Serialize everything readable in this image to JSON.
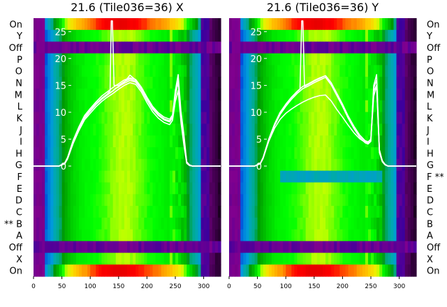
{
  "chart_data": [
    {
      "type": "heatmap",
      "title": "21.6 (Tile036=36) X",
      "xlabel": "",
      "ylabel": "",
      "xlim": [
        0,
        330
      ],
      "ylim": [
        -20.5,
        27.5
      ],
      "x_ticks": [
        0,
        50,
        100,
        150,
        200,
        250,
        300
      ],
      "y_ticks": [
        0,
        5,
        10,
        15,
        20,
        25
      ],
      "row_labels": [
        "On",
        "X",
        "Off",
        "A",
        "** B",
        "C",
        "D",
        "E",
        "F",
        "G",
        "H",
        "I",
        "J",
        "K",
        "L",
        "M",
        "N",
        "O",
        "P",
        "Off",
        "Y",
        "On"
      ],
      "colormap": "nipy_spectral",
      "line_color": "#ffffff",
      "off_rows": [
        2,
        19
      ],
      "flagged_rows": [
        4
      ],
      "series": [
        {
          "x": [
            0,
            45,
            55,
            60,
            70,
            80,
            90,
            100,
            110,
            120,
            130,
            140,
            150,
            160,
            170,
            180,
            190,
            200,
            210,
            220,
            230,
            240,
            245,
            250,
            255,
            260,
            265,
            270,
            275,
            280,
            290,
            300,
            310,
            320,
            330
          ],
          "y": [
            0,
            0,
            0.5,
            1.5,
            4.5,
            7,
            9,
            10.3,
            11.5,
            12.5,
            13.3,
            14,
            14.8,
            15.4,
            15.9,
            15.6,
            14.2,
            12.3,
            10.6,
            9.4,
            8.6,
            8.2,
            9,
            13,
            16,
            9,
            5,
            0.7,
            0.2,
            0,
            0,
            0,
            0,
            0,
            0
          ]
        },
        {
          "x": [
            0,
            45,
            55,
            60,
            70,
            80,
            90,
            100,
            110,
            120,
            130,
            140,
            150,
            160,
            170,
            180,
            190,
            200,
            210,
            220,
            230,
            240,
            245,
            250,
            255,
            260,
            265,
            270,
            275,
            280,
            290,
            300,
            310,
            320,
            330
          ],
          "y": [
            0,
            0,
            0.4,
            1.3,
            4.2,
            6.6,
            8.6,
            9.8,
            11,
            12,
            12.8,
            13.5,
            14.3,
            15,
            15.5,
            15.2,
            13.8,
            11.8,
            10.1,
            8.9,
            8.1,
            7.7,
            8.5,
            12,
            14,
            8,
            4,
            0.5,
            0.1,
            0,
            0,
            0,
            0,
            0,
            0
          ]
        },
        {
          "x": [
            0,
            45,
            55,
            60,
            70,
            80,
            90,
            100,
            110,
            120,
            130,
            140,
            150,
            160,
            170,
            180,
            190,
            200,
            210,
            220,
            230,
            240,
            245,
            250,
            255,
            260,
            265,
            270,
            275,
            280,
            290,
            300,
            310,
            320,
            330
          ],
          "y": [
            0,
            0,
            0.6,
            1.6,
            4.8,
            7.3,
            9.4,
            10.7,
            11.9,
            13,
            13.8,
            14.6,
            15.3,
            16,
            16.4,
            16.1,
            14.7,
            12.8,
            11.1,
            9.9,
            9.1,
            8.7,
            9.5,
            14,
            17,
            10,
            6,
            0.8,
            0.2,
            0,
            0,
            0,
            0,
            0,
            0
          ]
        },
        {
          "x": [
            0,
            45,
            55,
            60,
            70,
            80,
            90,
            100,
            110,
            120,
            130,
            140,
            145,
            150,
            160,
            170,
            180,
            190,
            200,
            210,
            220,
            230,
            240,
            245,
            250,
            255,
            260,
            265,
            270,
            275,
            280,
            290,
            300,
            310,
            320,
            330
          ],
          "y": [
            0,
            0,
            0.5,
            1.4,
            4.4,
            6.9,
            8.9,
            10.2,
            11.4,
            12.4,
            13.2,
            14,
            14.5,
            14.7,
            15.6,
            16.9,
            16,
            14.5,
            12.5,
            10.8,
            9.6,
            8.8,
            8.4,
            9.2,
            13.5,
            15.5,
            9.5,
            5.5,
            0.6,
            0.1,
            0,
            0,
            0,
            0,
            0,
            0
          ]
        },
        {
          "x": [
            0,
            45,
            55,
            60,
            70,
            80,
            90,
            100,
            110,
            120,
            130,
            135,
            137,
            139,
            142,
            150,
            160,
            170,
            180,
            190,
            200,
            210,
            220,
            230,
            240,
            245,
            250,
            255,
            260,
            265,
            270,
            275,
            280,
            290,
            300,
            310,
            320,
            330
          ],
          "y": [
            0,
            0,
            0.5,
            1.5,
            4.6,
            7.1,
            9.1,
            10.4,
            11.6,
            12.6,
            13.4,
            14,
            27,
            27,
            15,
            15,
            15.7,
            16.2,
            15.8,
            14.3,
            12.4,
            10.7,
            9.5,
            8.7,
            8.3,
            9,
            13,
            16,
            9,
            5,
            0.7,
            0.2,
            0,
            0,
            0,
            0,
            0,
            0
          ]
        }
      ]
    },
    {
      "type": "heatmap",
      "title": "21.6 (Tile036=36) Y",
      "xlabel": "",
      "ylabel": "",
      "xlim": [
        0,
        330
      ],
      "ylim": [
        -20.5,
        27.5
      ],
      "x_ticks": [
        0,
        50,
        100,
        150,
        200,
        250,
        300
      ],
      "y_ticks": [
        0,
        5,
        10,
        15,
        20,
        25
      ],
      "row_labels": [
        "On",
        "X",
        "Off",
        "A",
        "B",
        "C",
        "D",
        "E",
        "F **",
        "G",
        "H",
        "I",
        "J",
        "K",
        "L",
        "M",
        "N",
        "O",
        "P",
        "Off",
        "Y",
        "On"
      ],
      "colormap": "nipy_spectral",
      "line_color": "#ffffff",
      "off_rows": [
        2,
        19
      ],
      "flagged_rows": [
        8
      ],
      "series": [
        {
          "x": [
            0,
            45,
            55,
            60,
            70,
            80,
            90,
            100,
            110,
            120,
            130,
            140,
            150,
            160,
            170,
            180,
            190,
            200,
            210,
            220,
            230,
            240,
            245,
            250,
            255,
            260,
            265,
            270,
            275,
            280,
            290,
            300,
            310,
            320,
            330
          ],
          "y": [
            0,
            0,
            0.5,
            1.6,
            5,
            7.8,
            10,
            11.5,
            12.8,
            13.9,
            14.8,
            15.3,
            15.9,
            16.4,
            16.8,
            15.5,
            13.5,
            11.5,
            9.3,
            7.4,
            5.8,
            4.7,
            4.5,
            5,
            15,
            17,
            3,
            1,
            0.3,
            0,
            0,
            0,
            0,
            0,
            0
          ]
        },
        {
          "x": [
            0,
            45,
            55,
            60,
            70,
            80,
            90,
            100,
            110,
            120,
            130,
            140,
            150,
            160,
            170,
            180,
            190,
            200,
            210,
            220,
            230,
            240,
            245,
            250,
            255,
            260,
            265,
            270,
            275,
            280,
            290,
            300,
            310,
            320,
            330
          ],
          "y": [
            0,
            0,
            0.4,
            1.4,
            4.7,
            7.5,
            9.6,
            11.1,
            12.4,
            13.5,
            14.4,
            14.9,
            15.5,
            16,
            16.5,
            15.1,
            13.1,
            11.1,
            8.9,
            7,
            5.4,
            4.3,
            4.1,
            4.6,
            14,
            15,
            2.5,
            0.8,
            0.2,
            0,
            0,
            0,
            0,
            0,
            0
          ]
        },
        {
          "x": [
            0,
            45,
            55,
            60,
            70,
            80,
            90,
            100,
            110,
            120,
            125,
            128,
            130,
            133,
            140,
            150,
            160,
            170,
            180,
            190,
            200,
            210,
            220,
            230,
            240,
            245,
            250,
            255,
            260,
            265,
            270,
            275,
            280,
            290,
            300,
            310,
            320,
            330
          ],
          "y": [
            0,
            0,
            0.5,
            1.5,
            4.9,
            7.7,
            9.9,
            11.4,
            12.7,
            13.8,
            14.3,
            27,
            27,
            14.8,
            15.2,
            15.8,
            16.3,
            16.8,
            15.4,
            13.4,
            11.4,
            9.2,
            7.3,
            5.7,
            4.6,
            4.4,
            5,
            14.5,
            16,
            3,
            1,
            0.3,
            0,
            0,
            0,
            0,
            0,
            0
          ]
        },
        {
          "x": [
            0,
            45,
            55,
            60,
            70,
            80,
            90,
            100,
            110,
            120,
            130,
            140,
            150,
            160,
            170,
            180,
            190,
            200,
            210,
            220,
            230,
            240,
            245,
            250,
            255,
            260,
            265,
            270,
            275,
            280,
            290,
            300,
            310,
            320,
            330
          ],
          "y": [
            0,
            0,
            0.5,
            1.5,
            4.6,
            7,
            8.7,
            9.8,
            10.6,
            11.3,
            11.9,
            12.4,
            12.8,
            13.1,
            13.2,
            12.1,
            10.5,
            9.1,
            7.6,
            6.2,
            5.1,
            4.4,
            4.3,
            5,
            13,
            15,
            3,
            1,
            0.3,
            0,
            0,
            0,
            0,
            0,
            0
          ]
        }
      ]
    }
  ]
}
